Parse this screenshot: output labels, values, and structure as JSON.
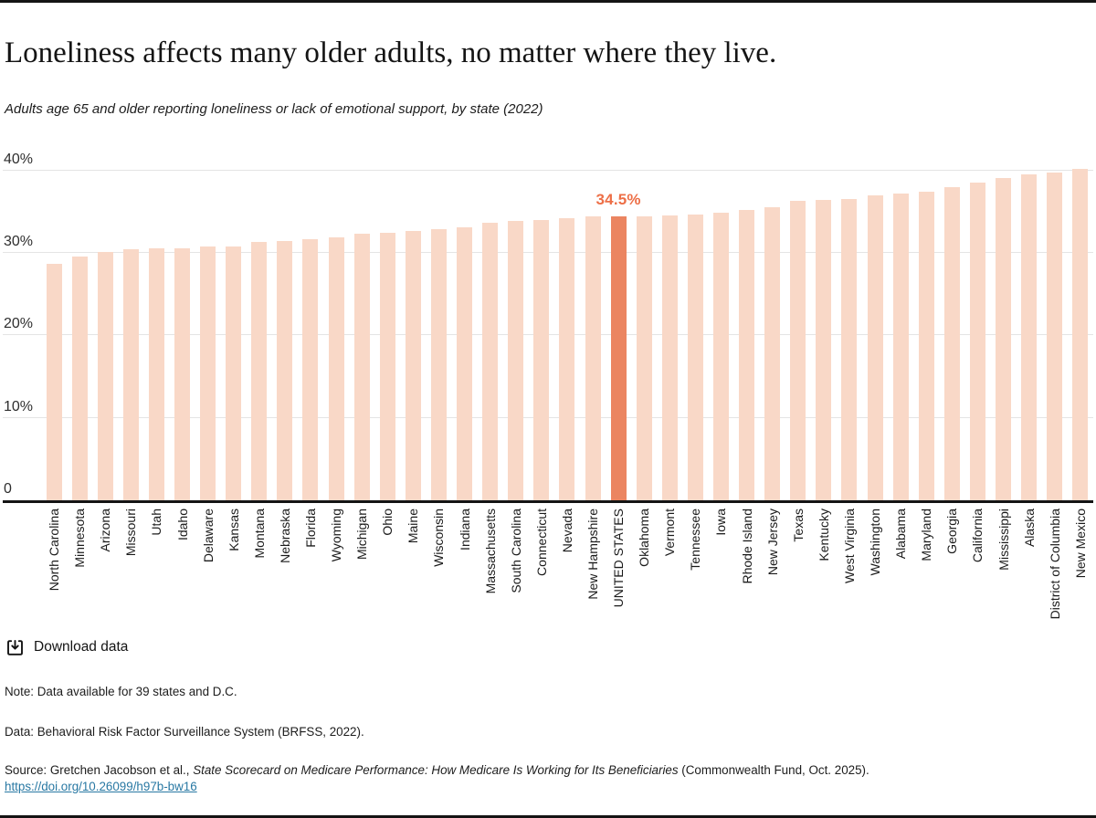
{
  "header": {
    "title": "Loneliness affects many older adults, no matter where they live.",
    "subtitle": "Adults age 65 and older reporting loneliness or lack of emotional support, by state (2022)"
  },
  "chart_data": {
    "type": "bar",
    "title": "Loneliness affects many older adults, no matter where they live.",
    "subtitle": "Adults age 65 and older reporting loneliness or lack of emotional support, by state (2022)",
    "xlabel": "",
    "ylabel": "",
    "ylim": [
      0,
      40
    ],
    "grid": true,
    "bar_color": "#F9D8C7",
    "highlight_color": "#EB8561",
    "highlight_category": "UNITED STATES",
    "annotation": {
      "category": "UNITED STATES",
      "text": "34.5%"
    },
    "annotation_color": "#ED6F47",
    "yticks": [
      {
        "label": "0",
        "value": 0
      },
      {
        "label": "10%",
        "value": 10
      },
      {
        "label": "20%",
        "value": 20
      },
      {
        "label": "30%",
        "value": 30
      },
      {
        "label": "40%",
        "value": 40
      }
    ],
    "categories": [
      "North Carolina",
      "Minnesota",
      "Arizona",
      "Missouri",
      "Utah",
      "Idaho",
      "Delaware",
      "Kansas",
      "Montana",
      "Nebraska",
      "Florida",
      "Wyoming",
      "Michigan",
      "Ohio",
      "Maine",
      "Wisconsin",
      "Indiana",
      "Massachusetts",
      "South Carolina",
      "Connecticut",
      "Nevada",
      "New Hampshire",
      "UNITED STATES",
      "Oklahoma",
      "Vermont",
      "Tennessee",
      "Iowa",
      "Rhode Island",
      "New Jersey",
      "Texas",
      "Kentucky",
      "West Virginia",
      "Washington",
      "Alabama",
      "Maryland",
      "Georgia",
      "California",
      "Mississippi",
      "Alaska",
      "District of Columbia",
      "New Mexico"
    ],
    "values": [
      28.7,
      29.6,
      30.1,
      30.5,
      30.6,
      30.6,
      30.8,
      30.8,
      31.4,
      31.5,
      31.7,
      31.9,
      32.4,
      32.5,
      32.7,
      32.9,
      33.1,
      33.7,
      33.9,
      34.0,
      34.2,
      34.4,
      34.5,
      34.5,
      34.6,
      34.7,
      34.9,
      35.2,
      35.6,
      36.3,
      36.4,
      36.6,
      37.0,
      37.2,
      37.5,
      38.0,
      38.5,
      39.1,
      39.5,
      39.8,
      40.2
    ]
  },
  "download": {
    "label": "Download data"
  },
  "footnotes": {
    "note": "Note: Data available for 39 states and D.C.",
    "data": "Data: Behavioral Risk Factor Surveillance System (BRFSS, 2022).",
    "source_prefix": "Source: Gretchen Jacobson et al., ",
    "source_italic": "State Scorecard on Medicare Performance: How Medicare Is Working for Its Beneficiaries",
    "source_suffix": " (Commonwealth Fund, Oct. 2025).",
    "link": "https://doi.org/10.26099/h97b-bw16"
  }
}
